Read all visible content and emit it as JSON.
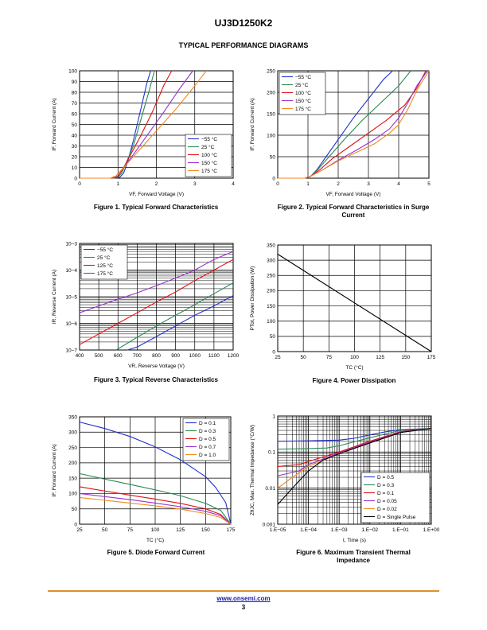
{
  "document": {
    "title": "UJ3D1250K2",
    "section": "TYPICAL PERFORMANCE DIAGRAMS",
    "footer_link": "www.onsemi.com",
    "page_number": "3"
  },
  "chart_data": [
    {
      "id": "fig1",
      "type": "line",
      "caption": "Figure 1. Typical Forward Characteristics",
      "xlabel": "VF, Forward Voltage (V)",
      "ylabel": "IF, Forward Current (A)",
      "xlim": [
        0,
        4
      ],
      "ylim": [
        0,
        100
      ],
      "xticks": [
        "0",
        "1",
        "2",
        "3",
        "4"
      ],
      "yticks": [
        "0",
        "10",
        "20",
        "30",
        "40",
        "50",
        "60",
        "70",
        "80",
        "90",
        "100"
      ],
      "grid": true,
      "legend_position": "bottom-right",
      "series": [
        {
          "name": "−55 °C",
          "color": "#2233cc",
          "x": [
            0,
            0.9,
            1.05,
            1.15,
            1.25,
            1.4,
            1.6,
            1.75,
            1.85
          ],
          "y": [
            0,
            0,
            1,
            5,
            15,
            35,
            65,
            88,
            100
          ]
        },
        {
          "name": "25 °C",
          "color": "#2a8a55",
          "x": [
            0,
            0.9,
            1.0,
            1.1,
            1.2,
            1.4,
            1.6,
            1.8,
            1.95
          ],
          "y": [
            0,
            0,
            1,
            5,
            13,
            30,
            55,
            80,
            100
          ]
        },
        {
          "name": "100 °C",
          "color": "#e01010",
          "x": [
            0,
            0.85,
            1.0,
            1.1,
            1.3,
            1.6,
            1.9,
            2.2,
            2.4
          ],
          "y": [
            0,
            0,
            2,
            7,
            20,
            40,
            62,
            87,
            100
          ]
        },
        {
          "name": "150 °C",
          "color": "#9932cc",
          "x": [
            0,
            0.8,
            0.95,
            1.1,
            1.4,
            1.8,
            2.2,
            2.6,
            2.95
          ],
          "y": [
            0,
            0,
            2,
            8,
            22,
            42,
            62,
            83,
            100
          ]
        },
        {
          "name": "175 °C",
          "color": "#f08a20",
          "x": [
            0,
            0.8,
            0.95,
            1.1,
            1.5,
            2.0,
            2.5,
            3.0,
            3.3
          ],
          "y": [
            0,
            0,
            2,
            8,
            24,
            44,
            64,
            86,
            100
          ]
        }
      ]
    },
    {
      "id": "fig2",
      "type": "line",
      "caption": "Figure 2. Typical Forward Characteristics in Surge Current",
      "xlabel": "VF, Forward Voltage (V)",
      "ylabel": "IF, Forward Current (A)",
      "xlim": [
        0,
        5
      ],
      "ylim": [
        0,
        250
      ],
      "xticks": [
        "0",
        "1",
        "2",
        "3",
        "4",
        "5"
      ],
      "yticks": [
        "0",
        "50",
        "100",
        "150",
        "200",
        "250"
      ],
      "grid": true,
      "legend_position": "top-left",
      "series": [
        {
          "name": "−55 °C",
          "color": "#2233cc",
          "x": [
            0,
            0.9,
            1.1,
            1.3,
            1.6,
            2.0,
            2.5,
            3.0,
            3.5,
            3.8
          ],
          "y": [
            0,
            0,
            5,
            20,
            50,
            90,
            140,
            185,
            230,
            250
          ]
        },
        {
          "name": "25 °C",
          "color": "#2a8a55",
          "x": [
            0,
            0.9,
            1.1,
            1.3,
            1.7,
            2.2,
            2.8,
            3.4,
            4.0,
            4.4
          ],
          "y": [
            0,
            0,
            5,
            18,
            50,
            90,
            135,
            175,
            215,
            250
          ]
        },
        {
          "name": "100 °C",
          "color": "#e01010",
          "x": [
            0,
            0.9,
            1.1,
            1.4,
            1.8,
            2.4,
            3.0,
            3.6,
            4.2,
            4.6,
            4.9
          ],
          "y": [
            0,
            0,
            5,
            20,
            45,
            75,
            105,
            135,
            170,
            210,
            250
          ]
        },
        {
          "name": "150 °C",
          "color": "#9932cc",
          "x": [
            0,
            0.9,
            1.1,
            1.5,
            2.0,
            2.6,
            3.2,
            3.7,
            4.0,
            4.3,
            4.6,
            4.95
          ],
          "y": [
            0,
            0,
            5,
            20,
            42,
            65,
            90,
            115,
            140,
            175,
            215,
            250
          ]
        },
        {
          "name": "175 °C",
          "color": "#f08a20",
          "x": [
            0,
            0.9,
            1.1,
            1.5,
            2.0,
            2.6,
            3.2,
            3.7,
            4.0,
            4.3,
            4.6,
            5.0
          ],
          "y": [
            0,
            0,
            5,
            20,
            40,
            60,
            80,
            105,
            125,
            160,
            205,
            250
          ]
        }
      ]
    },
    {
      "id": "fig3",
      "type": "line",
      "caption": "Figure 3. Typical Reverse Characteristics",
      "xlabel": "VR, Reverse Voltage (V)",
      "ylabel": "IR, Reverse Current (A)",
      "xlim": [
        400,
        1200
      ],
      "ylim": [
        1e-07,
        0.001
      ],
      "yscale": "log",
      "xticks": [
        "400",
        "500",
        "600",
        "700",
        "800",
        "900",
        "1000",
        "1100",
        "1200"
      ],
      "yticks": [
        "10−7",
        "10−6",
        "10−5",
        "10−4",
        "10−3"
      ],
      "grid": true,
      "legend_position": "top-left",
      "series": [
        {
          "name": "−55 °C",
          "color": "#2233cc",
          "x": [
            650,
            700,
            800,
            900,
            1000,
            1100,
            1200
          ],
          "y": [
            1e-07,
            1.3e-07,
            3.2e-07,
            8e-07,
            2e-06,
            4.5e-06,
            1.1e-05
          ]
        },
        {
          "name": "25 °C",
          "color": "#2a8a55",
          "x": [
            590,
            600,
            700,
            800,
            900,
            1000,
            1100,
            1200
          ],
          "y": [
            1e-07,
            1.1e-07,
            3e-07,
            8e-07,
            2e-06,
            5e-06,
            1.3e-05,
            3.3e-05
          ]
        },
        {
          "name": "125 °C",
          "color": "#e01010",
          "x": [
            400,
            500,
            600,
            700,
            800,
            900,
            1000,
            1100,
            1200
          ],
          "y": [
            1.6e-07,
            4e-07,
            1e-06,
            2.5e-06,
            6.3e-06,
            1.5e-05,
            4e-05,
            0.0001,
            0.00025
          ]
        },
        {
          "name": "175 °C",
          "color": "#9932cc",
          "x": [
            400,
            500,
            600,
            700,
            800,
            900,
            1000,
            1100,
            1200
          ],
          "y": [
            2.5e-06,
            4.5e-06,
            8e-06,
            1.4e-05,
            2.6e-05,
            5e-05,
            0.0001,
            0.00025,
            0.0005
          ]
        }
      ]
    },
    {
      "id": "fig4",
      "type": "line",
      "caption": "Figure 4. Power Dissipation",
      "xlabel": "TC (°C)",
      "ylabel": "PTot, Power Dissipation (W)",
      "xlim": [
        25,
        175
      ],
      "ylim": [
        0,
        350
      ],
      "xticks": [
        "25",
        "50",
        "75",
        "100",
        "125",
        "150",
        "175"
      ],
      "yticks": [
        "0",
        "50",
        "100",
        "150",
        "200",
        "250",
        "300",
        "350"
      ],
      "grid": true,
      "series": [
        {
          "name": "",
          "color": "#000000",
          "x": [
            25,
            175
          ],
          "y": [
            320,
            0
          ]
        }
      ]
    },
    {
      "id": "fig5",
      "type": "line",
      "caption": "Figure 5. Diode Forward Current",
      "xlabel": "TC (°C)",
      "ylabel": "IF, Forward Current (A)",
      "xlim": [
        25,
        175
      ],
      "ylim": [
        0,
        350
      ],
      "xticks": [
        "25",
        "50",
        "75",
        "100",
        "125",
        "150",
        "175"
      ],
      "yticks": [
        "0",
        "50",
        "100",
        "150",
        "200",
        "250",
        "300",
        "350"
      ],
      "grid": true,
      "legend_position": "top-right",
      "series": [
        {
          "name": "D = 0.1",
          "color": "#2233cc",
          "x": [
            25,
            50,
            75,
            100,
            125,
            150,
            160,
            170,
            175
          ],
          "y": [
            333,
            312,
            286,
            252,
            210,
            155,
            120,
            70,
            0
          ]
        },
        {
          "name": "D = 0.3",
          "color": "#2a8a55",
          "x": [
            25,
            50,
            75,
            100,
            125,
            150,
            165,
            175
          ],
          "y": [
            165,
            147,
            130,
            112,
            93,
            68,
            45,
            0
          ]
        },
        {
          "name": "D = 0.5",
          "color": "#e01010",
          "x": [
            25,
            50,
            75,
            100,
            125,
            150,
            165,
            175
          ],
          "y": [
            122,
            108,
            95,
            82,
            68,
            50,
            32,
            0
          ]
        },
        {
          "name": "D = 0.7",
          "color": "#9932cc",
          "x": [
            25,
            50,
            75,
            100,
            125,
            150,
            165,
            175
          ],
          "y": [
            100,
            90,
            80,
            69,
            57,
            42,
            28,
            0
          ]
        },
        {
          "name": "D = 1.0",
          "color": "#f08a20",
          "x": [
            25,
            50,
            75,
            100,
            125,
            150,
            165,
            175
          ],
          "y": [
            87,
            78,
            69,
            60,
            49,
            35,
            22,
            0
          ]
        }
      ]
    },
    {
      "id": "fig6",
      "type": "line",
      "caption": "Figure 6. Maximum Transient Thermal Impedance",
      "xlabel": "t, Time (s)",
      "ylabel": "ZθJC, Max. Thermal Impedance (°C/W)",
      "xlim": [
        1e-05,
        1
      ],
      "ylim": [
        0.001,
        1
      ],
      "xscale": "log",
      "yscale": "log",
      "xticks": [
        "1.E−05",
        "1.E−04",
        "1.E−03",
        "1.E−02",
        "1.E−01",
        "1.E+00"
      ],
      "yticks": [
        "0.001",
        "0.01",
        "0.1",
        "1"
      ],
      "grid": true,
      "legend_position": "bottom-right",
      "series": [
        {
          "name": "D = 0.5",
          "color": "#2233cc",
          "x": [
            1e-05,
            0.0001,
            0.001,
            0.003,
            0.01,
            0.03,
            0.1,
            1
          ],
          "y": [
            0.2,
            0.205,
            0.215,
            0.24,
            0.3,
            0.36,
            0.42,
            0.45
          ]
        },
        {
          "name": "D = 0.3",
          "color": "#2a8a55",
          "x": [
            1e-05,
            0.0001,
            0.0004,
            0.001,
            0.01,
            0.1,
            1
          ],
          "y": [
            0.12,
            0.125,
            0.13,
            0.15,
            0.25,
            0.4,
            0.45
          ]
        },
        {
          "name": "D = 0.1",
          "color": "#e01010",
          "x": [
            1e-05,
            5e-05,
            0.0001,
            0.001,
            0.01,
            0.1,
            1
          ],
          "y": [
            0.04,
            0.045,
            0.055,
            0.1,
            0.2,
            0.37,
            0.45
          ]
        },
        {
          "name": "D = 0.05",
          "color": "#9932cc",
          "x": [
            1e-05,
            5e-05,
            0.0001,
            0.001,
            0.01,
            0.1,
            1
          ],
          "y": [
            0.022,
            0.03,
            0.045,
            0.095,
            0.19,
            0.36,
            0.45
          ]
        },
        {
          "name": "D = 0.02",
          "color": "#f08a20",
          "x": [
            1e-05,
            3e-05,
            0.0001,
            0.001,
            0.01,
            0.1,
            1
          ],
          "y": [
            0.01,
            0.02,
            0.04,
            0.09,
            0.18,
            0.35,
            0.45
          ]
        },
        {
          "name": "D = Single Pulse",
          "color": "#000000",
          "x": [
            1e-05,
            3e-05,
            0.0001,
            0.0003,
            0.001,
            0.01,
            0.1,
            1
          ],
          "y": [
            0.0035,
            0.01,
            0.03,
            0.06,
            0.09,
            0.18,
            0.35,
            0.45
          ]
        }
      ]
    }
  ]
}
